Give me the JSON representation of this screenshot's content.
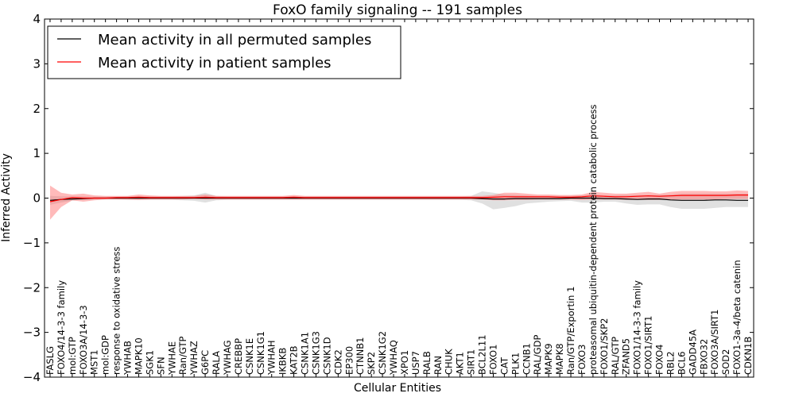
{
  "chart_data": {
    "type": "line",
    "title": "FoxO family signaling -- 191 samples",
    "xlabel": "Cellular Entities",
    "ylabel": "Inferred Activity",
    "ylim": [
      -4,
      4
    ],
    "yticks": [
      4,
      3,
      2,
      1,
      0,
      -1,
      -2,
      -3,
      -4
    ],
    "ytick_labels": [
      "4",
      "3",
      "2",
      "1",
      "0",
      "−1",
      "−2",
      "−3",
      "−4"
    ],
    "grid": false,
    "legend_position": "top-left",
    "categories": [
      "FASLG",
      "FOXO4/14-3-3 family",
      "mol:GTP",
      "FOXO3A/14-3-3",
      "MST1",
      "mol:GDP",
      "response to oxidative stress",
      "YWHAB",
      "MAPK10",
      "SGK1",
      "SFN",
      "YWHAE",
      "Ran/GTP",
      "YWHAZ",
      "G6PC",
      "RALA",
      "YWHAG",
      "CREBBP",
      "CSNK1E",
      "CSNK1G1",
      "YWHAH",
      "IKBKB",
      "KAT2B",
      "CSNK1A1",
      "CSNK1G3",
      "CSNK1D",
      "CDK2",
      "EP300",
      "CTNNB1",
      "SKP2",
      "CSNK1G2",
      "YWHAQ",
      "XPO1",
      "USP7",
      "RALB",
      "RAN",
      "CHUK",
      "AKT1",
      "SIRT1",
      "BCL2L11",
      "FOXO1",
      "CAT",
      "PLK1",
      "CCNB1",
      "RAL/GDP",
      "MAPK9",
      "MAPK8",
      "Ran/GTP/Exportin 1",
      "FOXO3",
      "proteasomal ubiquitin-dependent protein catabolic process",
      "FOXO1/SKP2",
      "RAL/GTP",
      "ZFAND5",
      "FOXO1/14-3-3 family",
      "FOXO1/SIRT1",
      "FOXO4",
      "RBL2",
      "BCL6",
      "GADD45A",
      "FBXO32",
      "FOXO3A/SIRT1",
      "SOD2",
      "FOXO1-3a-4/beta catenin",
      "CDKN1B"
    ],
    "series": [
      {
        "name": "Mean activity in all permuted samples",
        "color": "#000000",
        "values": [
          -0.05,
          -0.03,
          -0.02,
          -0.01,
          0,
          0,
          0,
          0,
          0,
          0,
          0,
          0,
          0,
          0,
          0,
          0,
          0,
          0,
          0,
          0,
          0,
          0,
          0,
          0,
          0,
          0,
          0,
          0,
          0,
          0,
          0,
          0,
          0,
          0,
          0,
          0,
          0,
          0,
          0,
          -0.01,
          -0.02,
          -0.02,
          -0.01,
          -0.01,
          -0.01,
          -0.01,
          -0.01,
          0,
          0,
          0,
          -0.01,
          -0.01,
          -0.02,
          -0.03,
          -0.02,
          -0.02,
          -0.04,
          -0.05,
          -0.05,
          -0.05,
          -0.04,
          -0.04,
          -0.05,
          -0.05
        ],
        "band_lower": [
          -0.15,
          -0.1,
          -0.06,
          -0.04,
          -0.03,
          -0.03,
          -0.03,
          -0.04,
          -0.04,
          -0.04,
          -0.04,
          -0.04,
          -0.05,
          -0.06,
          -0.1,
          -0.05,
          -0.04,
          -0.04,
          -0.04,
          -0.04,
          -0.04,
          -0.04,
          -0.04,
          -0.04,
          -0.04,
          -0.04,
          -0.04,
          -0.04,
          -0.04,
          -0.04,
          -0.04,
          -0.04,
          -0.04,
          -0.04,
          -0.04,
          -0.04,
          -0.04,
          -0.04,
          -0.05,
          -0.12,
          -0.25,
          -0.22,
          -0.18,
          -0.12,
          -0.1,
          -0.08,
          -0.07,
          -0.06,
          -0.1,
          -0.1,
          -0.08,
          -0.08,
          -0.12,
          -0.15,
          -0.14,
          -0.14,
          -0.2,
          -0.24,
          -0.24,
          -0.24,
          -0.22,
          -0.2,
          -0.2,
          -0.2
        ],
        "band_upper": [
          0.05,
          0.04,
          0.04,
          0.04,
          0.03,
          0.03,
          0.03,
          0.04,
          0.04,
          0.04,
          0.04,
          0.04,
          0.05,
          0.06,
          0.12,
          0.05,
          0.04,
          0.04,
          0.04,
          0.04,
          0.04,
          0.04,
          0.04,
          0.04,
          0.04,
          0.04,
          0.04,
          0.04,
          0.04,
          0.04,
          0.04,
          0.04,
          0.04,
          0.04,
          0.04,
          0.04,
          0.04,
          0.04,
          0.05,
          0.15,
          0.12,
          0.08,
          0.07,
          0.06,
          0.05,
          0.05,
          0.05,
          0.05,
          0.06,
          0.08,
          0.06,
          0.06,
          0.07,
          0.07,
          0.07,
          0.07,
          0.08,
          0.1,
          0.1,
          0.1,
          0.1,
          0.1,
          0.1,
          0.1
        ],
        "band_color": "#999999"
      },
      {
        "name": "Mean activity in patient samples",
        "color": "#ff0000",
        "values": [
          -0.08,
          -0.03,
          0.01,
          0,
          0,
          0,
          0.01,
          0.01,
          0.02,
          0.01,
          0.01,
          0.01,
          0.01,
          0.01,
          0.02,
          0.01,
          0.01,
          0.01,
          0.01,
          0.01,
          0.01,
          0.01,
          0.02,
          0.01,
          0.01,
          0.01,
          0.01,
          0.01,
          0.01,
          0.01,
          0.01,
          0.01,
          0.01,
          0.01,
          0.01,
          0.01,
          0.01,
          0.01,
          0.01,
          0.01,
          0.02,
          0.03,
          0.03,
          0.03,
          0.03,
          0.03,
          0.02,
          0.02,
          0.03,
          0.05,
          0.04,
          0.03,
          0.03,
          0.04,
          0.05,
          0.04,
          0.05,
          0.06,
          0.06,
          0.06,
          0.06,
          0.06,
          0.07,
          0.07
        ],
        "band_lower": [
          -0.48,
          -0.2,
          -0.05,
          -0.08,
          -0.05,
          -0.03,
          -0.03,
          -0.03,
          -0.04,
          -0.03,
          -0.03,
          -0.03,
          -0.03,
          -0.02,
          -0.03,
          -0.03,
          -0.03,
          -0.03,
          -0.03,
          -0.03,
          -0.03,
          -0.03,
          -0.03,
          -0.03,
          -0.03,
          -0.03,
          -0.03,
          -0.03,
          -0.03,
          -0.03,
          -0.03,
          -0.03,
          -0.03,
          -0.03,
          -0.03,
          -0.03,
          -0.03,
          -0.03,
          -0.03,
          -0.03,
          -0.05,
          -0.05,
          -0.04,
          -0.04,
          -0.03,
          -0.03,
          -0.03,
          -0.03,
          -0.04,
          -0.03,
          -0.03,
          -0.03,
          -0.04,
          -0.04,
          -0.04,
          -0.04,
          -0.03,
          -0.03,
          -0.03,
          -0.03,
          -0.03,
          -0.02,
          -0.02,
          -0.02
        ],
        "band_upper": [
          0.28,
          0.12,
          0.08,
          0.1,
          0.06,
          0.05,
          0.05,
          0.05,
          0.08,
          0.06,
          0.05,
          0.05,
          0.05,
          0.05,
          0.08,
          0.05,
          0.05,
          0.05,
          0.05,
          0.05,
          0.05,
          0.05,
          0.07,
          0.05,
          0.05,
          0.05,
          0.05,
          0.05,
          0.05,
          0.05,
          0.05,
          0.05,
          0.05,
          0.05,
          0.05,
          0.05,
          0.05,
          0.05,
          0.05,
          0.05,
          0.07,
          0.12,
          0.12,
          0.1,
          0.08,
          0.08,
          0.07,
          0.07,
          0.08,
          0.14,
          0.12,
          0.1,
          0.1,
          0.12,
          0.14,
          0.1,
          0.14,
          0.16,
          0.16,
          0.16,
          0.15,
          0.15,
          0.17,
          0.16
        ],
        "band_color": "#ff6666"
      }
    ]
  }
}
